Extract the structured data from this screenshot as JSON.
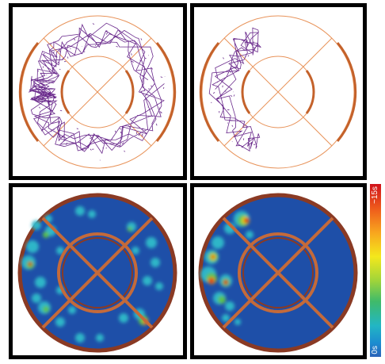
{
  "colorbar": {
    "max_label": "~15s",
    "min_label": "0s",
    "colors": [
      "#d0121a",
      "#ee5a1c",
      "#f8a51e",
      "#f4e81c",
      "#9fd43a",
      "#3fba6a",
      "#22b6c4",
      "#1c8cd0",
      "#2b62b8"
    ]
  },
  "colors": {
    "arena_lines": "#e8935a",
    "arena_wall": "#c4622b",
    "path": "#6a2a8c",
    "heatmap_background": "#1e4fa8",
    "heatmap_rim": "#8a3a24"
  },
  "panels": [
    {
      "id": "path-full-ring",
      "kind": "path"
    },
    {
      "id": "path-left-sector",
      "kind": "path"
    },
    {
      "id": "heatmap-full-ring",
      "kind": "heatmap"
    },
    {
      "id": "heatmap-left-sector",
      "kind": "heatmap"
    }
  ]
}
